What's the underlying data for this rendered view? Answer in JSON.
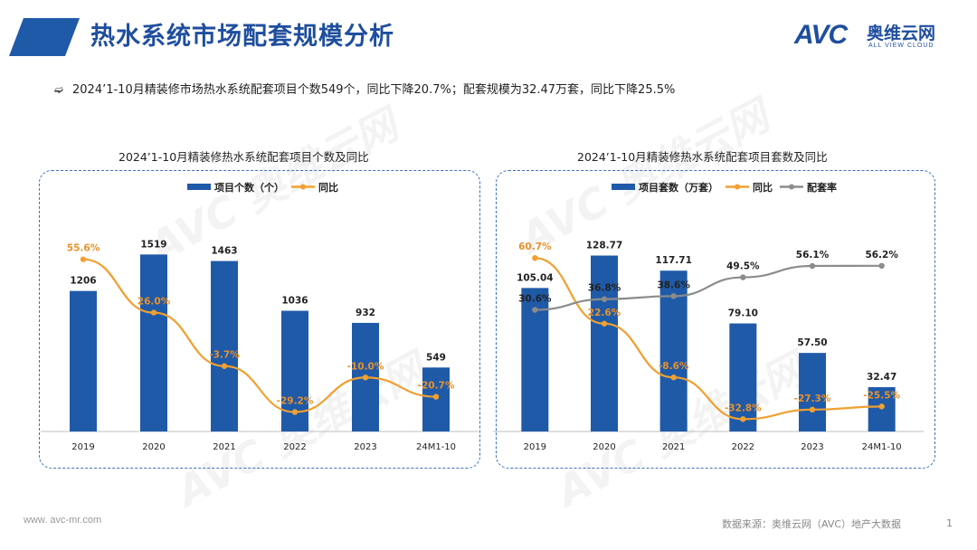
{
  "header": {
    "title": "热水系统市场配套规模分析",
    "brand_color": "#1f5aa8"
  },
  "logo": {
    "mark": "AVC",
    "cn": "奥维云网",
    "en": "ALL VIEW CLOUD"
  },
  "summary": {
    "bullet_icon": "double-arrow-icon",
    "text": "2024’1-10月精装修市场热水系统配套项目个数549个，同比下降20.7%；配套规模为32.47万套，同比下降25.5%"
  },
  "chart_data": [
    {
      "type": "bar",
      "title": "2024’1-10月精装修热水系统配套项目个数及同比",
      "categories": [
        "2019",
        "2020",
        "2021",
        "2022",
        "2023",
        "24M1-10"
      ],
      "series": [
        {
          "name": "项目个数（个）",
          "kind": "bar",
          "color": "#1f5aa8",
          "values": [
            1206,
            1519,
            1463,
            1036,
            932,
            549
          ],
          "labels": [
            "1206",
            "1519",
            "1463",
            "1036",
            "932",
            "549"
          ]
        },
        {
          "name": "同比",
          "kind": "line",
          "color": "#f0a030",
          "values": [
            55.6,
            26.0,
            -3.7,
            -29.2,
            -10.0,
            -20.7
          ],
          "labels": [
            "55.6%",
            "26.0%",
            "-3.7%",
            "-29.2%",
            "-10.0%",
            "-20.7%"
          ]
        }
      ],
      "bar_ylim": [
        0,
        1700
      ],
      "line_ylim": [
        -40,
        70
      ],
      "legend": "top-center",
      "grid": false
    },
    {
      "type": "bar",
      "title": "2024’1-10月精装修热水系统配套项目套数及同比",
      "categories": [
        "2019",
        "2020",
        "2021",
        "2022",
        "2023",
        "24M1-10"
      ],
      "series": [
        {
          "name": "项目套数（万套）",
          "kind": "bar",
          "color": "#1f5aa8",
          "values": [
            105.04,
            128.77,
            117.71,
            79.1,
            57.5,
            32.47
          ],
          "labels": [
            "105.04",
            "128.77",
            "117.71",
            "79.10",
            "57.50",
            "32.47"
          ]
        },
        {
          "name": "同比",
          "kind": "line",
          "color": "#f0a030",
          "values": [
            60.7,
            22.6,
            -8.6,
            -32.8,
            -27.3,
            -25.5
          ],
          "labels": [
            "60.7%",
            "22.6%",
            "-8.6%",
            "-32.8%",
            "-27.3%",
            "-25.5%"
          ]
        },
        {
          "name": "配套率",
          "kind": "line",
          "color": "#8c8c8c",
          "values": [
            30.6,
            36.8,
            38.6,
            49.5,
            56.1,
            56.2
          ],
          "labels": [
            "30.6%",
            "36.8%",
            "38.6%",
            "49.5%",
            "56.1%",
            "56.2%"
          ]
        }
      ],
      "bar_ylim": [
        0,
        145
      ],
      "line_ylim": [
        -40,
        75
      ],
      "legend": "top-center",
      "grid": false
    }
  ],
  "footer": {
    "website": "www. avc-mr.com",
    "source": "数据来源：奥维云网（AVC）地产大数据",
    "page": "1"
  }
}
